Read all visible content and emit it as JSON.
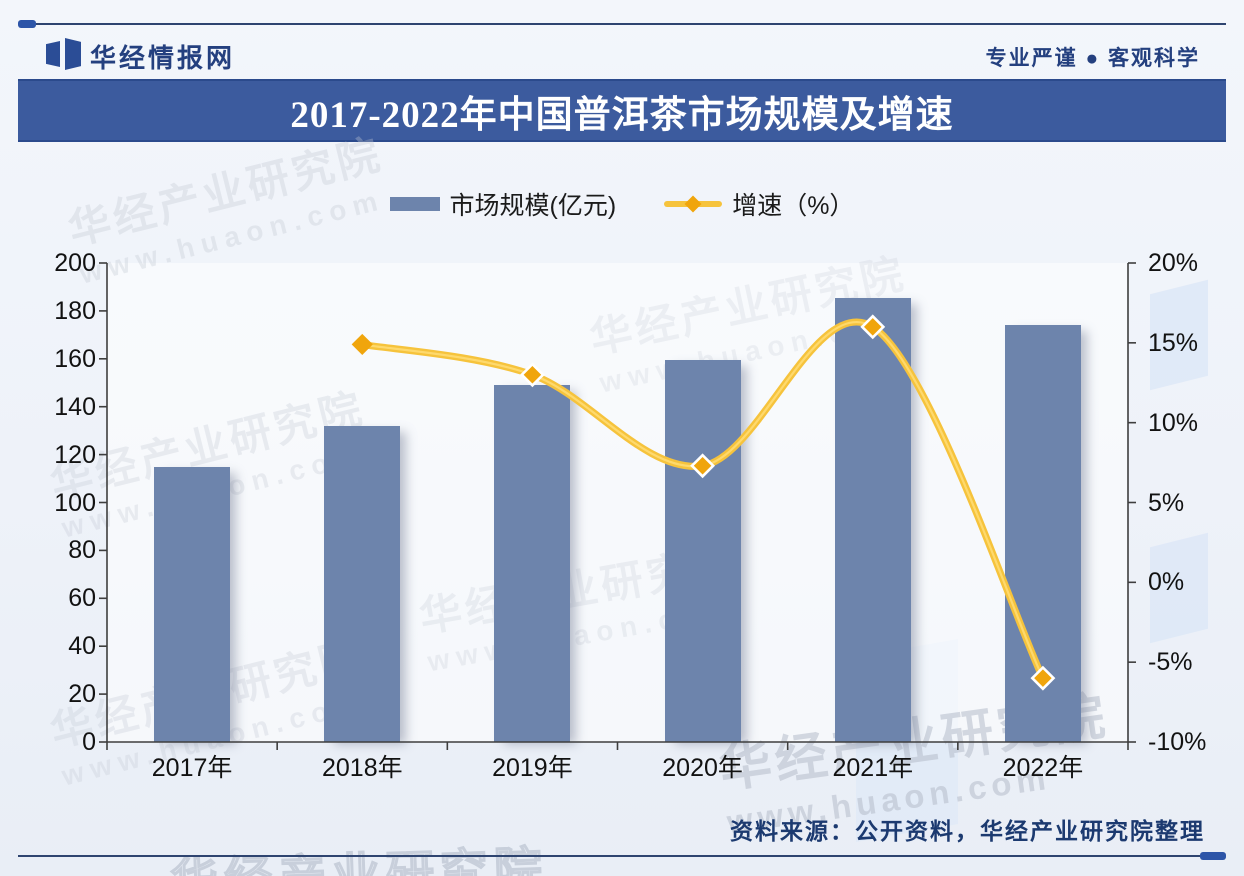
{
  "header": {
    "brand": "华经情报网",
    "tagline": "专业严谨 ● 客观科学"
  },
  "title_bar": {
    "text": "2017-2022年中国普洱茶市场规模及增速"
  },
  "legend": {
    "items": [
      {
        "label": "市场规模(亿元)",
        "swatch": "bar",
        "color": "#6d84ac"
      },
      {
        "label": "增速（%）",
        "swatch": "line",
        "color": "#f6c33c"
      }
    ]
  },
  "chart_data": {
    "type": "bar",
    "subtype": "bar-line-combo",
    "title": "2017-2022年中国普洱茶市场规模及增速",
    "categories": [
      "2017年",
      "2018年",
      "2019年",
      "2020年",
      "2021年",
      "2022年"
    ],
    "series": [
      {
        "name": "市场规模(亿元)",
        "type": "bar",
        "axis": "left",
        "values": [
          114.7,
          131.8,
          148.9,
          159.7,
          185.2,
          174.0
        ],
        "color": "#6d84ac"
      },
      {
        "name": "增速（%）",
        "type": "line",
        "axis": "right",
        "values": [
          null,
          14.9,
          13.0,
          7.3,
          16.0,
          -6.0
        ],
        "color": "#f6c33c",
        "marker": "diamond",
        "marker_color": "#f0a50c"
      }
    ],
    "left_axis": {
      "min": 0,
      "max": 200,
      "step": 20,
      "tick_labels": [
        "200",
        "180",
        "160",
        "140",
        "120",
        "100",
        "80",
        "60",
        "40",
        "20",
        "0"
      ]
    },
    "right_axis": {
      "min": -10,
      "max": 20,
      "step": 5,
      "tick_labels": [
        "20%",
        "15%",
        "10%",
        "5%",
        "0%",
        "-5%",
        "-10%"
      ]
    },
    "grid": false,
    "legend_position": "top"
  },
  "footer": {
    "source": "资料来源：公开资料，华经产业研究院整理"
  },
  "watermark": {
    "text": "华经产业研究院",
    "url": "www.huaon.com"
  },
  "colors": {
    "brand_navy": "#24407f",
    "title_bar_bg": "#3c5b9e",
    "bar_fill": "#6d84ac",
    "line_gold": "#f6c33c",
    "marker_orange": "#f0a50c",
    "axis_line": "#3e3e3e",
    "watermark_gray": "#c3c9d4"
  }
}
